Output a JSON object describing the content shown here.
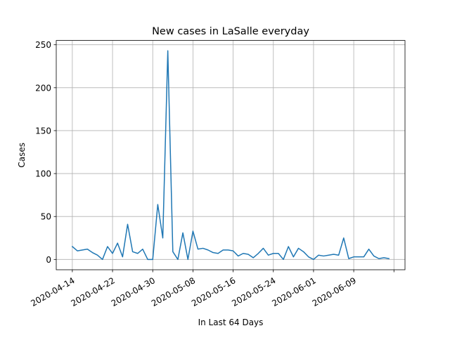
{
  "chart_data": {
    "type": "line",
    "title": "New cases in LaSalle everyday",
    "xlabel": "In Last 64 Days",
    "ylabel": "Cases",
    "grid": true,
    "line_color": "#1f77b4",
    "x_start": "2020-04-14",
    "x_tick_labels": [
      "2020-04-14",
      "2020-04-22",
      "2020-04-30",
      "2020-05-08",
      "2020-05-16",
      "2020-05-24",
      "2020-06-01",
      "2020-06-09",
      ""
    ],
    "x_tick_day_offsets": [
      0,
      8,
      16,
      24,
      32,
      40,
      48,
      56,
      64
    ],
    "y_ticks": [
      0,
      50,
      100,
      150,
      200,
      250
    ],
    "xlim_days": [
      -3.2,
      66.2
    ],
    "ylim": [
      -12,
      255
    ],
    "series": [
      {
        "name": "",
        "values": [
          15,
          10,
          11,
          12,
          8,
          5,
          0,
          15,
          7,
          19,
          3,
          41,
          9,
          7,
          12,
          0,
          0,
          64,
          25,
          243,
          9,
          0,
          31,
          0,
          33,
          12,
          13,
          11,
          8,
          7,
          11,
          11,
          10,
          4,
          7,
          6,
          2,
          7,
          13,
          5,
          7,
          7,
          0,
          15,
          3,
          13,
          9,
          3,
          0,
          5,
          4,
          5,
          6,
          5,
          25,
          1,
          3,
          3,
          3,
          12,
          4,
          1,
          2,
          1
        ]
      }
    ]
  }
}
